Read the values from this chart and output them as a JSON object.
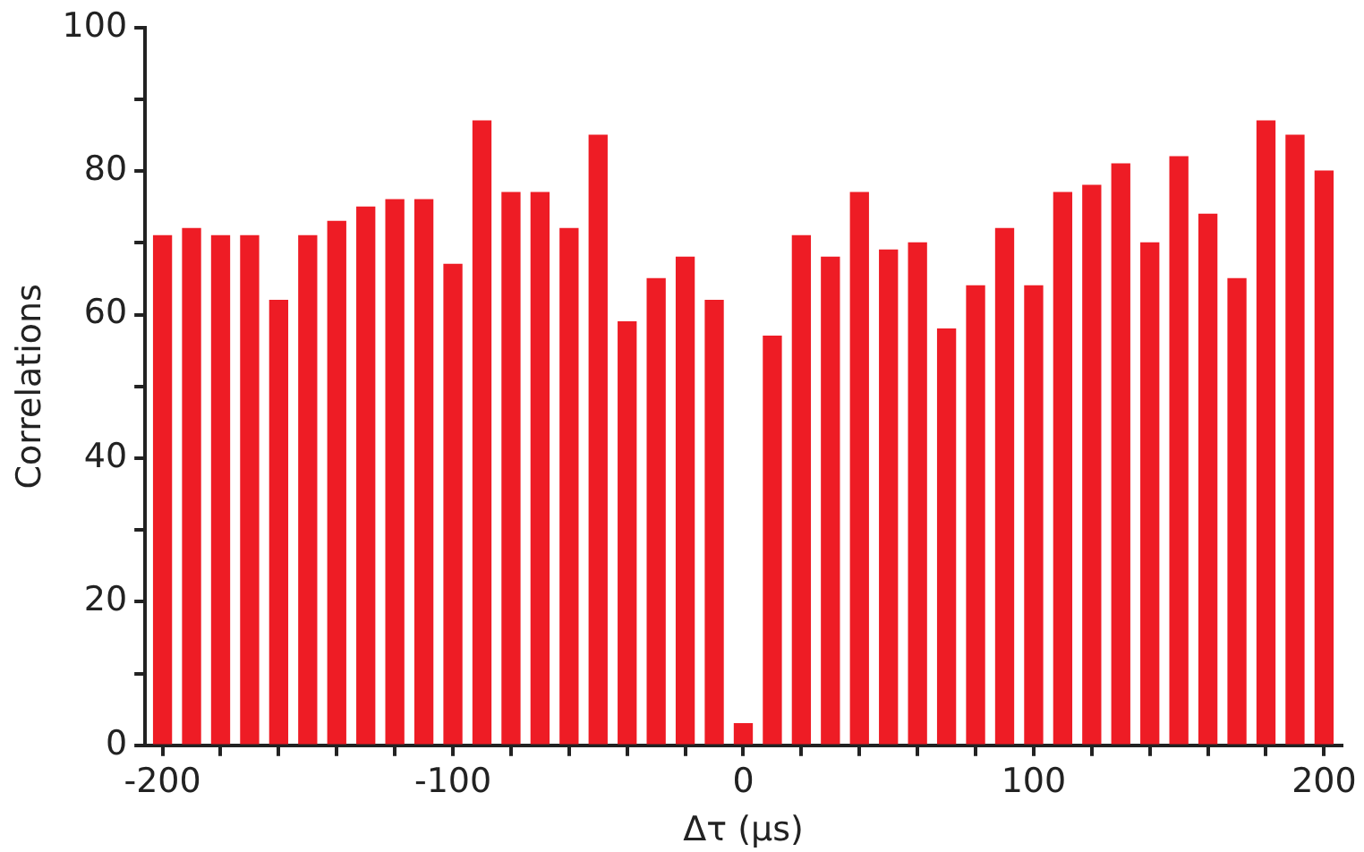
{
  "chart_data": {
    "type": "bar",
    "xlabel": "Δτ (μs)",
    "ylabel": "Correlations",
    "x": [
      -200,
      -190,
      -180,
      -170,
      -160,
      -150,
      -140,
      -130,
      -120,
      -110,
      -100,
      -90,
      -80,
      -70,
      -60,
      -50,
      -40,
      -30,
      -20,
      -10,
      0,
      10,
      20,
      30,
      40,
      50,
      60,
      70,
      80,
      90,
      100,
      110,
      120,
      130,
      140,
      150,
      160,
      170,
      180,
      190,
      200
    ],
    "values": [
      71,
      72,
      71,
      71,
      62,
      71,
      73,
      75,
      76,
      76,
      67,
      87,
      77,
      77,
      72,
      85,
      59,
      65,
      68,
      62,
      3,
      57,
      71,
      68,
      77,
      69,
      70,
      58,
      64,
      72,
      64,
      77,
      78,
      81,
      70,
      82,
      74,
      65,
      87,
      85,
      80
    ],
    "color": "#ee1c25",
    "xlim": [
      -206,
      206
    ],
    "xticks": [
      -200,
      {
        "value": -180,
        "label": null
      },
      {
        "value": -160,
        "label": null
      },
      {
        "value": -140,
        "label": null
      },
      {
        "value": -120,
        "label": null
      },
      -100,
      {
        "value": -80,
        "label": null
      },
      {
        "value": -60,
        "label": null
      },
      {
        "value": -40,
        "label": null
      },
      {
        "value": -20,
        "label": null
      },
      0,
      {
        "value": 20,
        "label": null
      },
      {
        "value": 40,
        "label": null
      },
      {
        "value": 60,
        "label": null
      },
      {
        "value": 80,
        "label": null
      },
      100,
      {
        "value": 120,
        "label": null
      },
      {
        "value": 140,
        "label": null
      },
      {
        "value": 160,
        "label": null
      },
      {
        "value": 180,
        "label": null
      },
      200
    ],
    "ylim": [
      0,
      100
    ],
    "yticks": [
      0,
      {
        "value": 10,
        "label": null
      },
      20,
      {
        "value": 30,
        "label": null
      },
      40,
      {
        "value": 50,
        "label": null
      },
      60,
      {
        "value": 70,
        "label": null
      },
      80,
      {
        "value": 90,
        "label": null
      },
      100
    ],
    "grid": false,
    "legend": false
  }
}
